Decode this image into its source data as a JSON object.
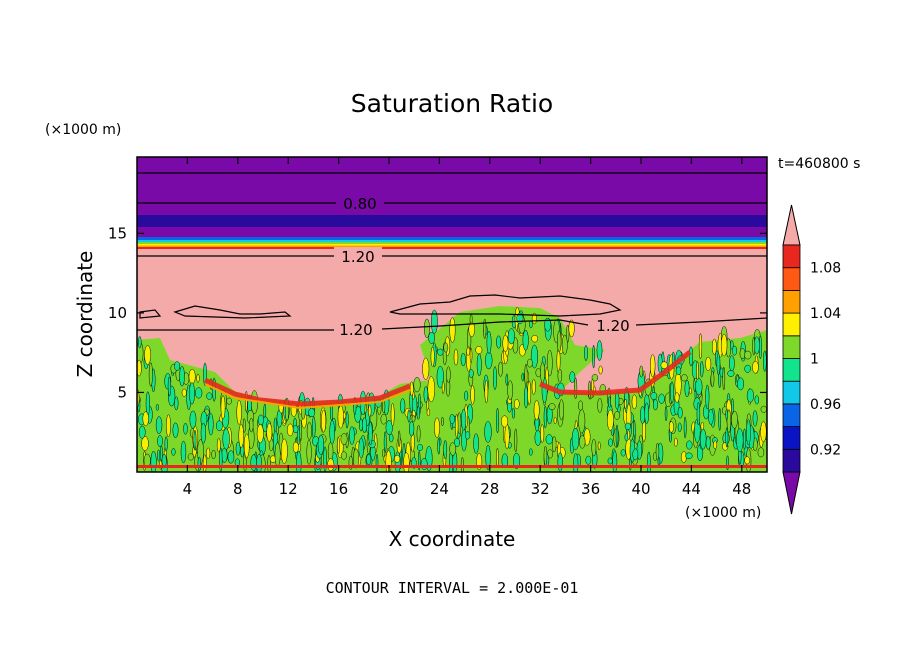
{
  "chart_data": {
    "type": "heatmap",
    "title": "Saturation Ratio",
    "xlabel": "X coordinate",
    "ylabel": "Z coordinate",
    "x_unit": "(×1000 m)",
    "y_unit": "(×1000 m)",
    "time_label": "t=460800 s",
    "contour_interval_label": "CONTOUR INTERVAL = 2.000E-01",
    "xlim": [
      0,
      50
    ],
    "ylim": [
      0,
      19.8
    ],
    "x_ticks": [
      4,
      8,
      12,
      16,
      20,
      24,
      28,
      32,
      36,
      40,
      44,
      48
    ],
    "y_ticks": [
      5,
      10,
      15
    ],
    "contour_labels": [
      {
        "text": "0.80",
        "x": 17.5,
        "z": 17.0
      },
      {
        "text": "1.20",
        "x": 17.5,
        "z": 13.7
      },
      {
        "text": "1.20",
        "x": 17.5,
        "z": 9.0
      },
      {
        "text": "1.20",
        "x": 37.8,
        "z": 9.1
      }
    ],
    "colorbar": {
      "tick_labels": [
        "1.08",
        "1.04",
        "1",
        "0.96",
        "0.92"
      ],
      "tick_values": [
        1.08,
        1.04,
        1.0,
        0.96,
        0.92
      ],
      "levels": [
        0.9,
        0.92,
        0.94,
        0.96,
        0.98,
        1.0,
        1.02,
        1.04,
        1.06,
        1.08,
        1.1
      ],
      "colors": [
        "#7a0aa8",
        "#2a0a9c",
        "#0a14c4",
        "#0a64e6",
        "#12c8e8",
        "#10e58e",
        "#7ed82a",
        "#fff000",
        "#ffa000",
        "#ff5a14",
        "#e8281e",
        "#f5aaaa"
      ],
      "extend": "both"
    }
  }
}
